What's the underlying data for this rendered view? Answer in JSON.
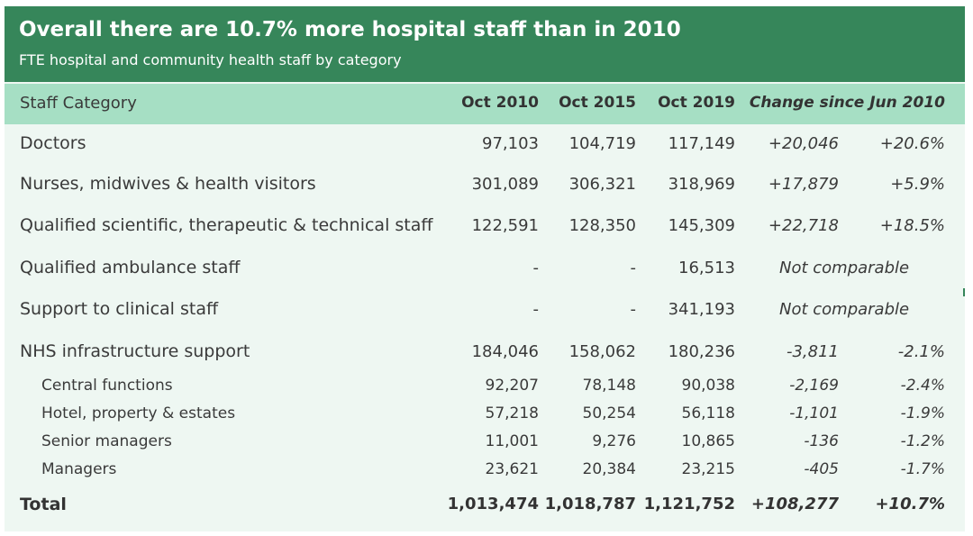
{
  "title": "Overall there are 10.7% more hospital staff than in 2010",
  "subtitle": "FTE hospital and community health staff by category",
  "columns": {
    "category": "Staff Category",
    "oct2010": "Oct 2010",
    "oct2015": "Oct 2015",
    "oct2019": "Oct 2019",
    "change": "Change since Jun 2010"
  },
  "rows": [
    {
      "label": "Doctors",
      "oct2010": "97,103",
      "oct2015": "104,719",
      "oct2019": "117,149",
      "change_abs": "+20,046",
      "change_pct": "+20.6%"
    },
    {
      "label": "Nurses, midwives & health visitors",
      "oct2010": "301,089",
      "oct2015": "306,321",
      "oct2019": "318,969",
      "change_abs": "+17,879",
      "change_pct": "+5.9%"
    },
    {
      "label": "Qualified scientific, therapeutic & technical staff",
      "oct2010": "122,591",
      "oct2015": "128,350",
      "oct2019": "145,309",
      "change_abs": "+22,718",
      "change_pct": "+18.5%"
    },
    {
      "label": "Qualified ambulance staff",
      "oct2010": "-",
      "oct2015": "-",
      "oct2019": "16,513",
      "change_note": "Not comparable"
    },
    {
      "label": "Support to clinical staff",
      "oct2010": "-",
      "oct2015": "-",
      "oct2019": "341,193",
      "change_note": "Not comparable"
    },
    {
      "label": "NHS infrastructure support",
      "oct2010": "184,046",
      "oct2015": "158,062",
      "oct2019": "180,236",
      "change_abs": "-3,811",
      "change_pct": "-2.1%"
    }
  ],
  "subrows": [
    {
      "label": "Central functions",
      "oct2010": "92,207",
      "oct2015": "78,148",
      "oct2019": "90,038",
      "change_abs": "-2,169",
      "change_pct": "-2.4%"
    },
    {
      "label": "Hotel, property & estates",
      "oct2010": "57,218",
      "oct2015": "50,254",
      "oct2019": "56,118",
      "change_abs": "-1,101",
      "change_pct": "-1.9%"
    },
    {
      "label": "Senior managers",
      "oct2010": "11,001",
      "oct2015": "9,276",
      "oct2019": "10,865",
      "change_abs": "-136",
      "change_pct": "-1.2%"
    },
    {
      "label": "Managers",
      "oct2010": "23,621",
      "oct2015": "20,384",
      "oct2019": "23,215",
      "change_abs": "-405",
      "change_pct": "-1.7%"
    }
  ],
  "total": {
    "label": "Total",
    "oct2010": "1,013,474",
    "oct2015": "1,018,787",
    "oct2019": "1,121,752",
    "change_abs": "+108,277",
    "change_pct": "+10.7%"
  },
  "colors": {
    "header": "#36865a",
    "column_header": "#a6dfc4",
    "body": "#eef7f2"
  }
}
